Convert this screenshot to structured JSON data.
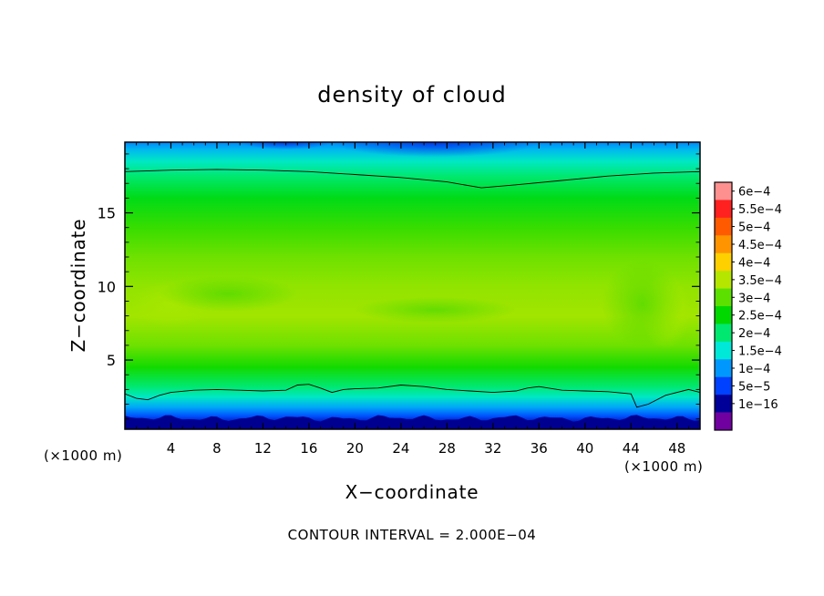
{
  "chart_data": {
    "type": "heatmap",
    "title": "density of cloud",
    "xlabel": "X−coordinate",
    "ylabel": "Z−coordinate",
    "x_unit": "(×1000 m)",
    "y_unit": "(×1000 m)",
    "xlim": [
      0,
      50
    ],
    "ylim": [
      0.3,
      19.8
    ],
    "x_ticks": [
      4,
      8,
      12,
      16,
      20,
      24,
      28,
      32,
      36,
      40,
      44,
      48
    ],
    "y_ticks": [
      5,
      10,
      15
    ],
    "contour_interval_text": "CONTOUR INTERVAL = 2.000E−04",
    "contour_interval": 0.0002,
    "colorbar": {
      "labels": [
        "6e−4",
        "5.5e−4",
        "5e−4",
        "4.5e−4",
        "4e−4",
        "3.5e−4",
        "3e−4",
        "2.5e−4",
        "2e−4",
        "1.5e−4",
        "1e−4",
        "5e−5",
        "1e−16"
      ],
      "levels": [
        0.0006,
        0.00055,
        0.0005,
        0.00045,
        0.0004,
        0.00035,
        0.0003,
        0.00025,
        0.0002,
        0.00015,
        0.0001,
        5e-05,
        1e-16
      ],
      "colors": [
        "#ff9090",
        "#ff2020",
        "#ff5a00",
        "#ff9400",
        "#ffd000",
        "#b4e600",
        "#5ce000",
        "#00d800",
        "#00e870",
        "#00e8d8",
        "#0098ff",
        "#0040ff",
        "#000098",
        "#7000a0"
      ]
    },
    "approx_field_profile": {
      "z": [
        0.3,
        0.8,
        1.2,
        1.8,
        2.5,
        3.2,
        4.5,
        6,
        8,
        10,
        12,
        14,
        16,
        17.5,
        18.5,
        19.3,
        19.8
      ],
      "density": [
        5e-06,
        2e-05,
        6e-05,
        0.00011,
        0.00016,
        0.0002,
        0.00026,
        0.00031,
        0.00034,
        0.00033,
        0.00031,
        0.00028,
        0.00024,
        0.0002,
        0.00016,
        0.00012,
        9e-05
      ]
    },
    "contour_2e-4_upper": {
      "x": [
        0,
        4,
        8,
        12,
        16,
        20,
        24,
        28,
        31,
        34,
        38,
        42,
        46,
        50
      ],
      "z": [
        17.8,
        17.9,
        17.95,
        17.9,
        17.8,
        17.6,
        17.4,
        17.1,
        16.7,
        16.9,
        17.2,
        17.5,
        17.7,
        17.8
      ]
    },
    "contour_2e-4_lower": {
      "x": [
        0,
        1,
        2,
        3,
        4,
        6,
        8,
        10,
        12,
        14,
        15,
        16,
        17,
        18,
        19,
        20,
        22,
        24,
        26,
        28,
        30,
        32,
        34,
        35,
        36,
        38,
        40,
        42,
        44,
        44.5,
        45.5,
        47,
        49,
        50
      ],
      "z": [
        2.7,
        2.4,
        2.3,
        2.6,
        2.8,
        2.95,
        3.0,
        2.95,
        2.9,
        2.95,
        3.3,
        3.35,
        3.1,
        2.8,
        3.0,
        3.05,
        3.1,
        3.3,
        3.2,
        3.0,
        2.9,
        2.8,
        2.9,
        3.1,
        3.2,
        2.95,
        2.9,
        2.85,
        2.7,
        1.8,
        2.0,
        2.6,
        3.0,
        2.8
      ]
    }
  }
}
